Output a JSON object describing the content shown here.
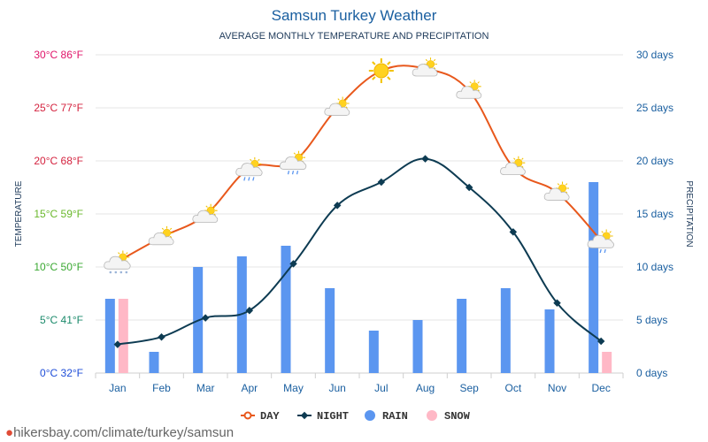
{
  "header": {
    "title": "Samsun Turkey Weather",
    "subtitle": "AVERAGE MONTHLY TEMPERATURE AND PRECIPITATION"
  },
  "footer": {
    "url": "hikersbay.com/climate/turkey/samsun"
  },
  "chart_data": {
    "type": "line",
    "categories": [
      "Jan",
      "Feb",
      "Mar",
      "Apr",
      "May",
      "Jun",
      "Jul",
      "Aug",
      "Sep",
      "Oct",
      "Nov",
      "Dec"
    ],
    "left_axis": {
      "label": "TEMPERATURE",
      "ylim": [
        0,
        30
      ],
      "ticks": [
        {
          "value": 0,
          "label": "0°C 32°F",
          "color": "#1f4ed8"
        },
        {
          "value": 5,
          "label": "5°C 41°F",
          "color": "#1b8a6b"
        },
        {
          "value": 10,
          "label": "10°C 50°F",
          "color": "#3aa832"
        },
        {
          "value": 15,
          "label": "15°C 59°F",
          "color": "#6ab82c"
        },
        {
          "value": 20,
          "label": "20°C 68°F",
          "color": "#d4233f"
        },
        {
          "value": 25,
          "label": "25°C 77°F",
          "color": "#d4233f"
        },
        {
          "value": 30,
          "label": "30°C 86°F",
          "color": "#e0156a"
        }
      ]
    },
    "right_axis": {
      "label": "PRECIPITATION",
      "ylim": [
        0,
        30
      ],
      "ticks": [
        {
          "value": 0,
          "label": "0 days"
        },
        {
          "value": 5,
          "label": "5 days"
        },
        {
          "value": 10,
          "label": "10 days"
        },
        {
          "value": 15,
          "label": "15 days"
        },
        {
          "value": 20,
          "label": "20 days"
        },
        {
          "value": 25,
          "label": "25 days"
        },
        {
          "value": 30,
          "label": "30 days"
        }
      ]
    },
    "series": [
      {
        "name": "DAY",
        "type": "line",
        "axis": "left",
        "color": "#e8581c",
        "values": [
          10.5,
          12.8,
          14.9,
          19.3,
          19.9,
          25.0,
          28.5,
          28.7,
          26.6,
          19.4,
          17.0,
          12.5
        ]
      },
      {
        "name": "NIGHT",
        "type": "line",
        "axis": "left",
        "color": "#0d3b52",
        "values": [
          2.7,
          3.4,
          5.2,
          5.9,
          10.3,
          15.8,
          18.0,
          20.2,
          17.5,
          13.3,
          6.6,
          3.0
        ]
      },
      {
        "name": "RAIN",
        "type": "bar",
        "axis": "right",
        "color": "#5b96f0",
        "values": [
          7,
          2,
          10,
          11,
          12,
          8,
          4,
          5,
          7,
          8,
          6,
          18
        ]
      },
      {
        "name": "SNOW",
        "type": "bar",
        "axis": "right",
        "color": "#ffb8c6",
        "values": [
          7,
          0,
          0,
          0,
          0,
          0,
          0,
          0,
          0,
          0,
          0,
          2
        ]
      }
    ],
    "weather_icons": [
      "snow-cloud-icon",
      "partly-sunny-icon",
      "partly-sunny-icon",
      "sun-shower-icon",
      "sun-shower-icon",
      "partly-sunny-icon",
      "sun-icon",
      "partly-sunny-icon",
      "partly-sunny-icon",
      "partly-sunny-icon",
      "partly-sunny-icon",
      "sun-shower-icon"
    ],
    "grid": true,
    "legend_position": "bottom"
  }
}
